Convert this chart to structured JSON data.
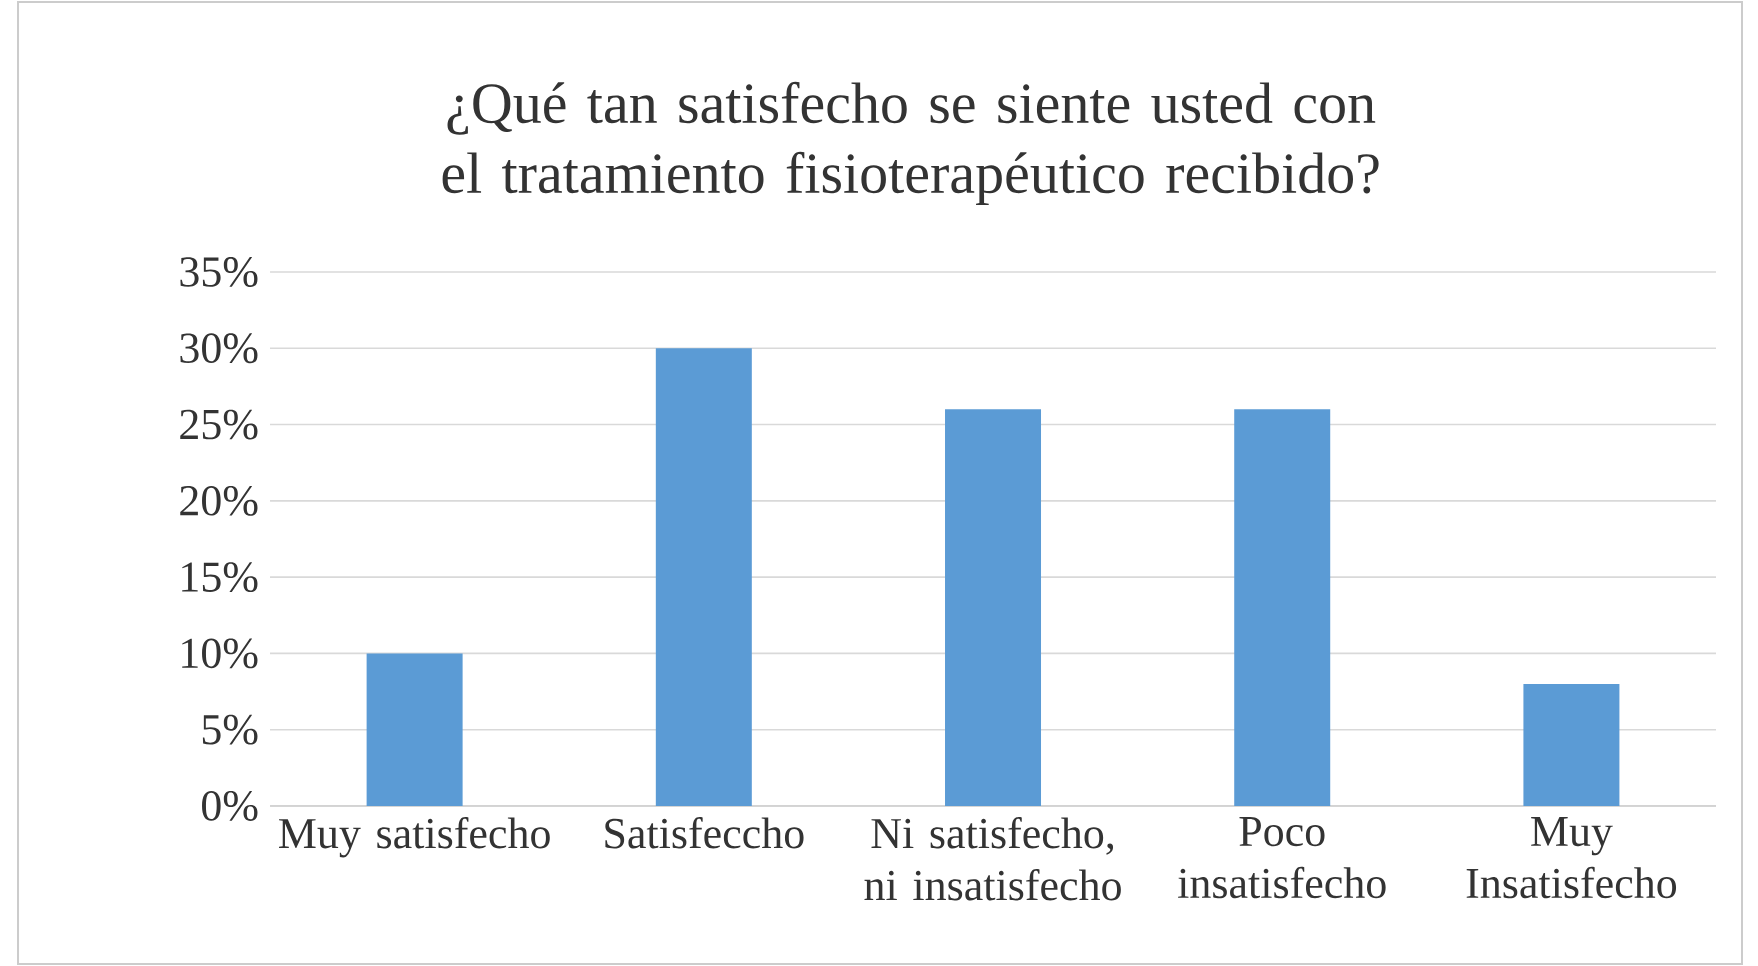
{
  "chart_data": {
    "type": "bar",
    "title": "¿Qué tan satisfecho se siente usted con el tratamiento fisioterapéutico recibido?",
    "categories": [
      "Muy satisfecho",
      "Satisfeccho",
      "Ni satisfecho, ni insatisfecho",
      "Poco insatisfecho",
      "Muy Insatisfecho"
    ],
    "values": [
      10,
      30,
      26,
      26,
      8
    ],
    "color": "#5b9bd5",
    "ylim": [
      0,
      35
    ],
    "yticks": [
      {
        "value": 0,
        "label": "0%"
      },
      {
        "value": 5,
        "label": "5%"
      },
      {
        "value": 10,
        "label": "10%"
      },
      {
        "value": 15,
        "label": "15%"
      },
      {
        "value": 20,
        "label": "20%"
      },
      {
        "value": 25,
        "label": "25%"
      },
      {
        "value": 30,
        "label": "30%"
      },
      {
        "value": 35,
        "label": "35%"
      }
    ],
    "grid": "y"
  }
}
